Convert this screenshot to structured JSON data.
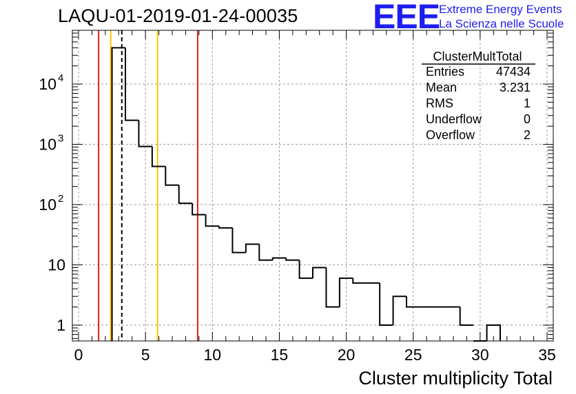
{
  "title": "LAQU-01-2019-01-24-00035",
  "logo": {
    "mark": "EEE",
    "line1": "Extreme Energy Events",
    "line2": "La Scienza nelle Scuole",
    "color": "#1e1ef0"
  },
  "stats": {
    "name": "ClusterMultTotal",
    "rows": [
      {
        "label": "Entries",
        "value": "47434"
      },
      {
        "label": "Mean",
        "value": "3.231"
      },
      {
        "label": "RMS",
        "value": "1"
      },
      {
        "label": "Underflow",
        "value": "0"
      },
      {
        "label": "Overflow",
        "value": "2"
      }
    ]
  },
  "colors": {
    "red": "#e41a1a",
    "gold": "#f5c300",
    "grid": "#9a9a9a",
    "hist": "#000000"
  },
  "chart_data": {
    "type": "histogram",
    "title": "LAQU-01-2019-01-24-00035",
    "xlabel": "Cluster multiplicity Total",
    "ylabel": "",
    "xscale": "linear",
    "yscale": "log",
    "xlim": [
      0,
      35
    ],
    "ylim": [
      0.5,
      70000
    ],
    "grid": true,
    "x_ticks": [
      {
        "value": 0,
        "label": "0"
      },
      {
        "value": 5,
        "label": "5"
      },
      {
        "value": 10,
        "label": "10"
      },
      {
        "value": 15,
        "label": "15"
      },
      {
        "value": 20,
        "label": "20"
      },
      {
        "value": 25,
        "label": "25"
      },
      {
        "value": 30,
        "label": "30"
      },
      {
        "value": 35,
        "label": "35"
      }
    ],
    "y_ticks": [
      {
        "value": 1,
        "base": "1",
        "exp": ""
      },
      {
        "value": 10,
        "base": "10",
        "exp": ""
      },
      {
        "value": 100,
        "base": "10",
        "exp": "2"
      },
      {
        "value": 1000,
        "base": "10",
        "exp": "3"
      },
      {
        "value": 10000,
        "base": "10",
        "exp": "4"
      }
    ],
    "bins": [
      {
        "x0": 2.5,
        "x1": 3.5,
        "count": 40000
      },
      {
        "x0": 3.5,
        "x1": 4.5,
        "count": 2500
      },
      {
        "x0": 4.5,
        "x1": 5.5,
        "count": 920
      },
      {
        "x0": 5.5,
        "x1": 6.5,
        "count": 430
      },
      {
        "x0": 6.5,
        "x1": 7.5,
        "count": 210
      },
      {
        "x0": 7.5,
        "x1": 8.5,
        "count": 105
      },
      {
        "x0": 8.5,
        "x1": 9.5,
        "count": 68
      },
      {
        "x0": 9.5,
        "x1": 10.5,
        "count": 44
      },
      {
        "x0": 10.5,
        "x1": 11.5,
        "count": 41
      },
      {
        "x0": 11.5,
        "x1": 12.5,
        "count": 16
      },
      {
        "x0": 12.5,
        "x1": 13.5,
        "count": 22
      },
      {
        "x0": 13.5,
        "x1": 14.5,
        "count": 12
      },
      {
        "x0": 14.5,
        "x1": 15.5,
        "count": 13
      },
      {
        "x0": 15.5,
        "x1": 16.5,
        "count": 12
      },
      {
        "x0": 16.5,
        "x1": 17.5,
        "count": 6
      },
      {
        "x0": 17.5,
        "x1": 18.5,
        "count": 9
      },
      {
        "x0": 18.5,
        "x1": 19.5,
        "count": 2
      },
      {
        "x0": 19.5,
        "x1": 20.5,
        "count": 6
      },
      {
        "x0": 20.5,
        "x1": 21.5,
        "count": 5
      },
      {
        "x0": 21.5,
        "x1": 22.5,
        "count": 5
      },
      {
        "x0": 22.5,
        "x1": 23.5,
        "count": 1
      },
      {
        "x0": 23.5,
        "x1": 24.5,
        "count": 3
      },
      {
        "x0": 24.5,
        "x1": 25.5,
        "count": 2
      },
      {
        "x0": 25.5,
        "x1": 26.5,
        "count": 2
      },
      {
        "x0": 26.5,
        "x1": 27.5,
        "count": 2
      },
      {
        "x0": 27.5,
        "x1": 28.5,
        "count": 2
      },
      {
        "x0": 28.5,
        "x1": 29.5,
        "count": 1
      },
      {
        "x0": 29.5,
        "x1": 30.5,
        "count": 0
      },
      {
        "x0": 30.5,
        "x1": 31.5,
        "count": 1
      }
    ],
    "vertical_lines": [
      {
        "x": 1.5,
        "color": "red",
        "style": "solid"
      },
      {
        "x": 2.4,
        "color": "gold",
        "style": "solid"
      },
      {
        "x": 3.231,
        "color": "black",
        "style": "dashed"
      },
      {
        "x": 5.9,
        "color": "gold",
        "style": "solid"
      },
      {
        "x": 8.9,
        "color": "red",
        "style": "solid"
      }
    ]
  }
}
